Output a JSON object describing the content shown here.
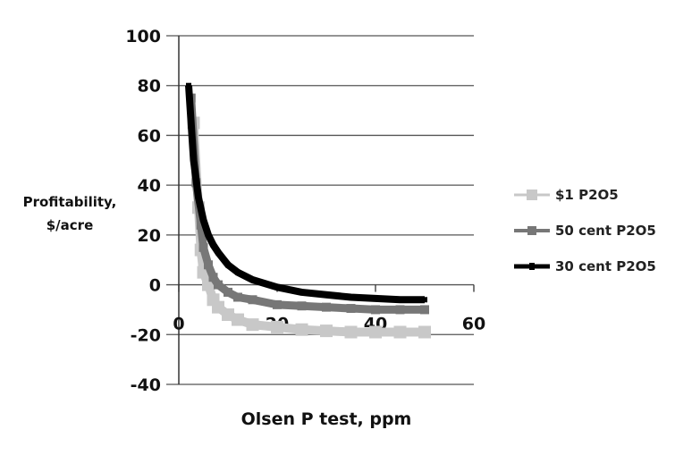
{
  "chart_data": {
    "type": "line",
    "title": "",
    "xlabel": "Olsen P test, ppm",
    "ylabel": "Profitability, $/acre",
    "xlim": [
      0,
      60
    ],
    "ylim": [
      -40,
      100
    ],
    "x_ticks": [
      0,
      20,
      40,
      60
    ],
    "y_ticks": [
      -40,
      -20,
      0,
      20,
      40,
      60,
      80,
      100
    ],
    "grid": "horizontal",
    "legend_position": "right",
    "series": [
      {
        "name": "$1 P2O5",
        "color": "#c8c8c8",
        "marker": "square",
        "x": [
          3,
          4,
          4.5,
          5,
          6,
          7,
          8,
          10,
          12,
          15,
          20,
          25,
          30,
          35,
          40,
          45,
          50
        ],
        "y": [
          65,
          31,
          14,
          5,
          0,
          -6,
          -9,
          -12,
          -14,
          -16,
          -17,
          -18,
          -18.5,
          -19,
          -19,
          -19,
          -19
        ]
      },
      {
        "name": "50 cent P2O5",
        "color": "#777777",
        "marker": "square",
        "x": [
          2.5,
          3.5,
          4.5,
          5,
          6,
          7,
          8,
          10,
          12,
          15,
          20,
          25,
          30,
          35,
          40,
          45,
          50
        ],
        "y": [
          75,
          41,
          24,
          15,
          8,
          3,
          0,
          -3,
          -5,
          -6,
          -8,
          -8.5,
          -9,
          -9.5,
          -10,
          -10,
          -10
        ]
      },
      {
        "name": "30 cent P2O5",
        "color": "#000000",
        "marker": "square",
        "x": [
          2,
          3,
          4,
          5,
          6,
          7,
          8,
          10,
          12,
          15,
          20,
          25,
          30,
          35,
          40,
          45,
          50
        ],
        "y": [
          80,
          50,
          35,
          26,
          20,
          16,
          13,
          8,
          5,
          2,
          -1,
          -3,
          -4,
          -5,
          -5.5,
          -6,
          -6
        ]
      }
    ]
  },
  "axes": {
    "ylabel_line1": "Profitability,",
    "ylabel_line2": "$/acre",
    "xlabel": "Olsen P test, ppm"
  },
  "legend": [
    "$1 P2O5",
    "50 cent P2O5",
    "30 cent P2O5"
  ]
}
